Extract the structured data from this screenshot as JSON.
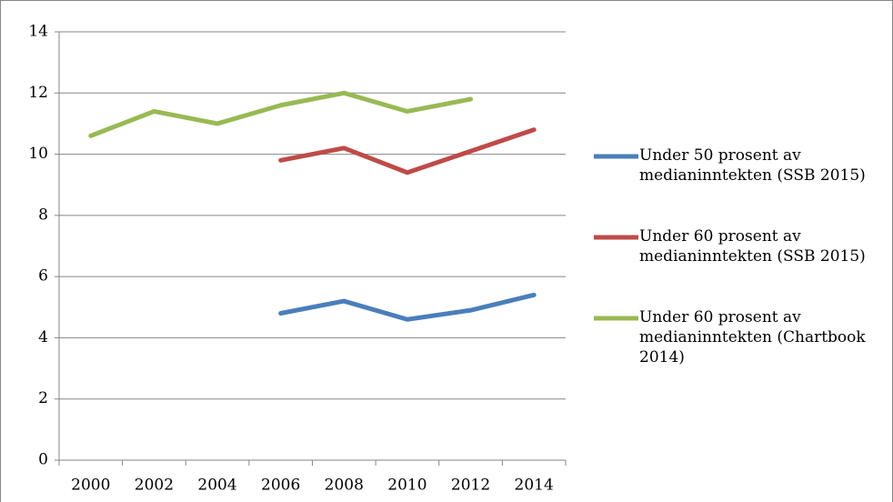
{
  "chart_data": {
    "type": "line",
    "categories": [
      "2000",
      "2002",
      "2004",
      "2006",
      "2008",
      "2010",
      "2012",
      "2014"
    ],
    "series": [
      {
        "name": "Under 50 prosent av medianinntekten (SSB 2015)",
        "color": "#4a7ebb",
        "values": [
          null,
          null,
          null,
          4.8,
          5.2,
          4.6,
          4.9,
          5.4
        ]
      },
      {
        "name": "Under 60 prosent av medianinntekten (SSB 2015)",
        "color": "#be4b48",
        "values": [
          null,
          null,
          null,
          9.8,
          10.2,
          9.4,
          10.1,
          10.8
        ]
      },
      {
        "name": "Under 60 prosent av medianinntekten (Chartbook 2014)",
        "color": "#98b954",
        "values": [
          10.6,
          11.4,
          11.0,
          11.6,
          12.0,
          11.4,
          11.8,
          null
        ]
      }
    ],
    "ylim": [
      0,
      14
    ],
    "yticks": [
      0,
      2,
      4,
      6,
      8,
      10,
      12,
      14
    ],
    "grid": true,
    "legend": "right"
  }
}
